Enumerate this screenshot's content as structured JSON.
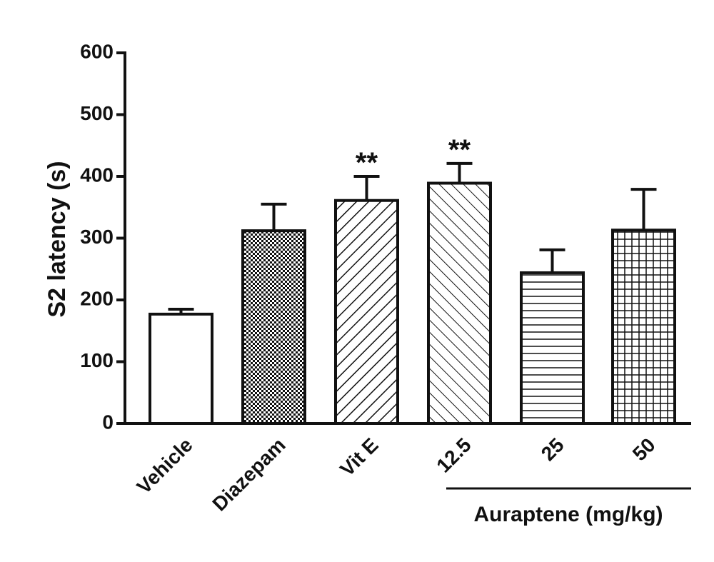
{
  "chart_data": {
    "type": "bar",
    "y_label": "S2 latency (s)",
    "categories": [
      "Vehicle",
      "Diazepam",
      "Vit E",
      "12.5",
      "25",
      "50"
    ],
    "values": [
      177,
      312,
      361,
      389,
      244,
      313
    ],
    "errors": [
      8,
      43,
      39,
      32,
      37,
      66
    ],
    "annotations": [
      null,
      null,
      "**",
      "**",
      null,
      null
    ],
    "patterns": [
      "none",
      "checker",
      "up",
      "down",
      "horizontal",
      "grid"
    ],
    "color": "#111111",
    "group_label": "Auraptene (mg/kg)",
    "ylim": [
      0,
      600
    ],
    "yticks": [
      0,
      100,
      200,
      300,
      400,
      500,
      600
    ],
    "grid": false
  }
}
